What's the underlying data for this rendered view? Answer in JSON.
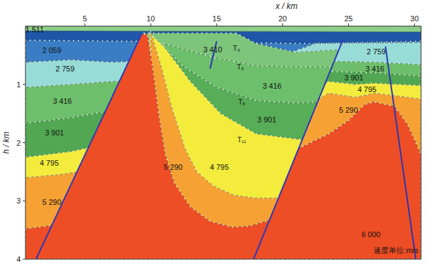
{
  "chart_data": {
    "type": "velocity_model",
    "x_label": "x / km",
    "y_label": "h / km",
    "xlim": [
      0.5,
      30.5
    ],
    "ylim": [
      0,
      4
    ],
    "xticks": [
      5,
      10,
      15,
      20,
      25,
      30
    ],
    "yticks": [
      1,
      2,
      3,
      4
    ],
    "bodies": [
      {
        "color": "#8fce8a",
        "polygon": [
          [
            0.5,
            0
          ],
          [
            30.5,
            0
          ],
          [
            30.5,
            4
          ],
          [
            0.5,
            4
          ]
        ]
      },
      {
        "color": "#1f56a8",
        "polygon": [
          [
            0.5,
            0.08
          ],
          [
            30.5,
            0.1
          ],
          [
            30.5,
            4
          ],
          [
            0.5,
            4
          ]
        ]
      },
      {
        "color": "#3a7dc4",
        "polygon": [
          [
            0.5,
            0.24
          ],
          [
            9,
            0.26
          ],
          [
            22,
            0.3
          ],
          [
            30.5,
            0.26
          ],
          [
            30.5,
            4
          ],
          [
            0.5,
            4
          ]
        ]
      },
      {
        "color": "#98dcd8",
        "polygon": [
          [
            0.5,
            0.62
          ],
          [
            4,
            0.58
          ],
          [
            7,
            0.62
          ],
          [
            10,
            0.6
          ],
          [
            20,
            0.5
          ],
          [
            22.5,
            0.3
          ],
          [
            30.5,
            0.28
          ],
          [
            30.5,
            4
          ],
          [
            0.5,
            4
          ]
        ]
      },
      {
        "color": "#6dbf6b",
        "polygon": [
          [
            0.5,
            1.05
          ],
          [
            4,
            1.0
          ],
          [
            7,
            0.95
          ],
          [
            10,
            0.9
          ],
          [
            20,
            0.8
          ],
          [
            23.5,
            0.6
          ],
          [
            27,
            0.62
          ],
          [
            30.5,
            0.66
          ],
          [
            30.5,
            4
          ],
          [
            0.5,
            4
          ]
        ]
      },
      {
        "color": "#52a852",
        "polygon": [
          [
            0.5,
            1.67
          ],
          [
            4,
            1.57
          ],
          [
            7,
            1.45
          ],
          [
            10,
            1.3
          ],
          [
            20,
            1.1
          ],
          [
            23.5,
            0.78
          ],
          [
            27,
            0.8
          ],
          [
            30.5,
            0.86
          ],
          [
            30.5,
            4
          ],
          [
            0.5,
            4
          ]
        ]
      },
      {
        "color": "#f3ec3c",
        "polygon": [
          [
            0.5,
            2.25
          ],
          [
            4,
            2.15
          ],
          [
            7,
            2.0
          ],
          [
            10,
            1.8
          ],
          [
            20,
            1.3
          ],
          [
            23.5,
            0.95
          ],
          [
            25.5,
            1.0
          ],
          [
            27,
            0.98
          ],
          [
            30.5,
            1.02
          ],
          [
            30.5,
            4
          ],
          [
            0.5,
            4
          ]
        ]
      },
      {
        "color": "#f6a133",
        "polygon": [
          [
            0.5,
            2.6
          ],
          [
            3,
            2.55
          ],
          [
            6,
            2.45
          ],
          [
            10,
            2.2
          ],
          [
            20,
            1.6
          ],
          [
            23.5,
            1.15
          ],
          [
            25.5,
            1.22
          ],
          [
            27,
            1.15
          ],
          [
            30.5,
            1.25
          ],
          [
            30.5,
            4
          ],
          [
            0.5,
            4
          ]
        ]
      },
      {
        "color": "#7cc57a",
        "polygon": [
          [
            9.5,
            0.12
          ],
          [
            16.5,
            0.12
          ],
          [
            18,
            0.3
          ],
          [
            21,
            0.45
          ],
          [
            24.28,
            0.4
          ],
          [
            17.8,
            4
          ],
          [
            9.5,
            4
          ]
        ]
      },
      {
        "color": "#6dbf6b",
        "polygon": [
          [
            11,
            0.3
          ],
          [
            15,
            0.55
          ],
          [
            18,
            0.68
          ],
          [
            21,
            0.7
          ],
          [
            23.74,
            0.7
          ],
          [
            17.8,
            4
          ],
          [
            11,
            4
          ]
        ]
      },
      {
        "color": "#58ad58",
        "polygon": [
          [
            10.3,
            0.2
          ],
          [
            12.5,
            0.7
          ],
          [
            15,
            1.05
          ],
          [
            18,
            1.28
          ],
          [
            21,
            1.32
          ],
          [
            22.66,
            1.3
          ],
          [
            17.8,
            4
          ],
          [
            10.3,
            4
          ]
        ]
      },
      {
        "color": "#f3ec3c",
        "polygon": [
          [
            9.9,
            0.12
          ],
          [
            11,
            0.35
          ],
          [
            13,
            0.95
          ],
          [
            15.3,
            1.5
          ],
          [
            18,
            1.85
          ],
          [
            21.49,
            1.95
          ],
          [
            17.8,
            4
          ],
          [
            9.9,
            4
          ]
        ]
      },
      {
        "color": "#f6a133",
        "polygon": [
          [
            10.0,
            0.1
          ],
          [
            10.8,
            0.7
          ],
          [
            11.6,
            1.4
          ],
          [
            12.6,
            2.1
          ],
          [
            13.5,
            2.5
          ],
          [
            14.8,
            2.75
          ],
          [
            16.3,
            2.9
          ],
          [
            17.9,
            2.95
          ],
          [
            19.7,
            2.95
          ],
          [
            17.8,
            4
          ],
          [
            10.0,
            4
          ]
        ]
      },
      {
        "color": "#ee4e25",
        "polygon": [
          [
            0.5,
            3.48
          ],
          [
            2.5,
            3.42
          ],
          [
            9.3,
            0.14
          ],
          [
            9.7,
            0.13
          ],
          [
            9.8,
            0.2
          ],
          [
            10.2,
            0.8
          ],
          [
            10.6,
            1.5
          ],
          [
            11.1,
            2.2
          ],
          [
            11.8,
            2.7
          ],
          [
            13,
            3.1
          ],
          [
            14.5,
            3.35
          ],
          [
            16.2,
            3.45
          ],
          [
            17.5,
            3.43
          ],
          [
            19,
            3.33
          ],
          [
            17.8,
            4
          ],
          [
            0.5,
            4
          ]
        ]
      },
      {
        "color": "#ee4e25",
        "polygon": [
          [
            21.2,
            2.1
          ],
          [
            23.5,
            1.85
          ],
          [
            25,
            1.62
          ],
          [
            26.2,
            1.35
          ],
          [
            26.9,
            1.3
          ],
          [
            28.5,
            1.38
          ],
          [
            29.5,
            1.7
          ],
          [
            30.5,
            2.2
          ],
          [
            30.5,
            4
          ],
          [
            17.8,
            4
          ]
        ]
      }
    ],
    "faults": [
      [
        [
          1.3,
          4
        ],
        [
          9.3,
          0.14
        ]
      ],
      [
        [
          24.6,
          0.22
        ],
        [
          17.8,
          4
        ]
      ],
      [
        [
          27.8,
          0.35
        ],
        [
          30.1,
          4
        ]
      ],
      [
        [
          14.5,
          0.73
        ],
        [
          15.0,
          0.26
        ]
      ]
    ],
    "velocity_labels": [
      {
        "label": "1 511",
        "x": 1.2,
        "h": 0.06
      },
      {
        "label": "2 059",
        "x": 2.5,
        "h": 0.41
      },
      {
        "label": "2 759",
        "x": 3.5,
        "h": 0.73
      },
      {
        "label": "3 416",
        "x": 3.3,
        "h": 1.29
      },
      {
        "label": "3 901",
        "x": 2.7,
        "h": 1.83
      },
      {
        "label": "4 795",
        "x": 2.3,
        "h": 2.35
      },
      {
        "label": "5 290",
        "x": 2.5,
        "h": 3.02
      },
      {
        "label": "3 410",
        "x": 14.7,
        "h": 0.4
      },
      {
        "label": "3 416",
        "x": 19.2,
        "h": 1.03
      },
      {
        "label": "3 901",
        "x": 18.8,
        "h": 1.6
      },
      {
        "label": "4 795",
        "x": 15.2,
        "h": 2.42
      },
      {
        "label": "5 290",
        "x": 11.7,
        "h": 2.42
      },
      {
        "label": "2 759",
        "x": 27.1,
        "h": 0.44
      },
      {
        "label": "3 416",
        "x": 27.0,
        "h": 0.73
      },
      {
        "label": "3 901",
        "x": 25.4,
        "h": 0.88
      },
      {
        "label": "4 795",
        "x": 26.4,
        "h": 1.08
      },
      {
        "label": "5 290",
        "x": 25.0,
        "h": 1.44
      },
      {
        "label": "6 000",
        "x": 26.7,
        "h": 3.58
      }
    ],
    "horizons": [
      {
        "label": "T₃",
        "x": 16.5,
        "h": 0.38
      },
      {
        "label": "T₆",
        "x": 16.8,
        "h": 0.7
      },
      {
        "label": "T₈",
        "x": 16.9,
        "h": 1.3
      },
      {
        "label": "T₁₁",
        "x": 16.9,
        "h": 1.95
      }
    ],
    "unit_note": {
      "text": "速度单位:m/s",
      "x": 30.3,
      "h": 3.85
    }
  }
}
